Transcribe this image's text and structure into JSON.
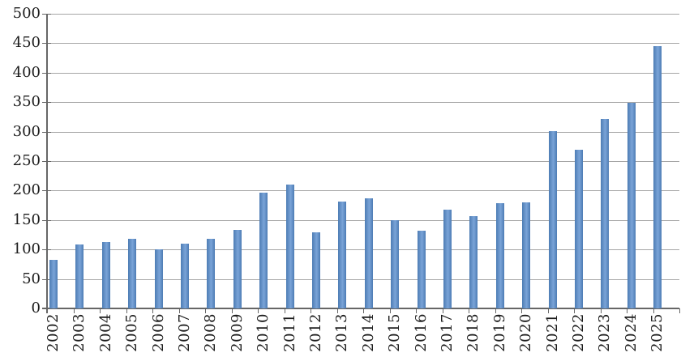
{
  "chart_data": {
    "type": "bar",
    "title": "",
    "xlabel": "",
    "ylabel": "",
    "categories": [
      "2002",
      "2003",
      "2004",
      "2005",
      "2006",
      "2007",
      "2008",
      "2009",
      "2010",
      "2011",
      "2012",
      "2013",
      "2014",
      "2015",
      "2016",
      "2017",
      "2018",
      "2019",
      "2020",
      "2021",
      "2022",
      "2023",
      "2024",
      "2025"
    ],
    "values": [
      83,
      108,
      113,
      118,
      100,
      110,
      118,
      133,
      197,
      210,
      129,
      182,
      187,
      150,
      132,
      167,
      157,
      178,
      180,
      301,
      269,
      322,
      349,
      445
    ],
    "ylim": [
      0,
      500
    ],
    "ytick_step": 50,
    "grid": true,
    "legend": false,
    "colors": {
      "bar_main": "#4f81bd",
      "bar_edge": "#4d7cb4",
      "bar_highlight": "#7aa4d8",
      "gridline": "#a6a6a6",
      "axis": "#666666",
      "text": "#1c1c1c",
      "background": "#ffffff"
    }
  }
}
